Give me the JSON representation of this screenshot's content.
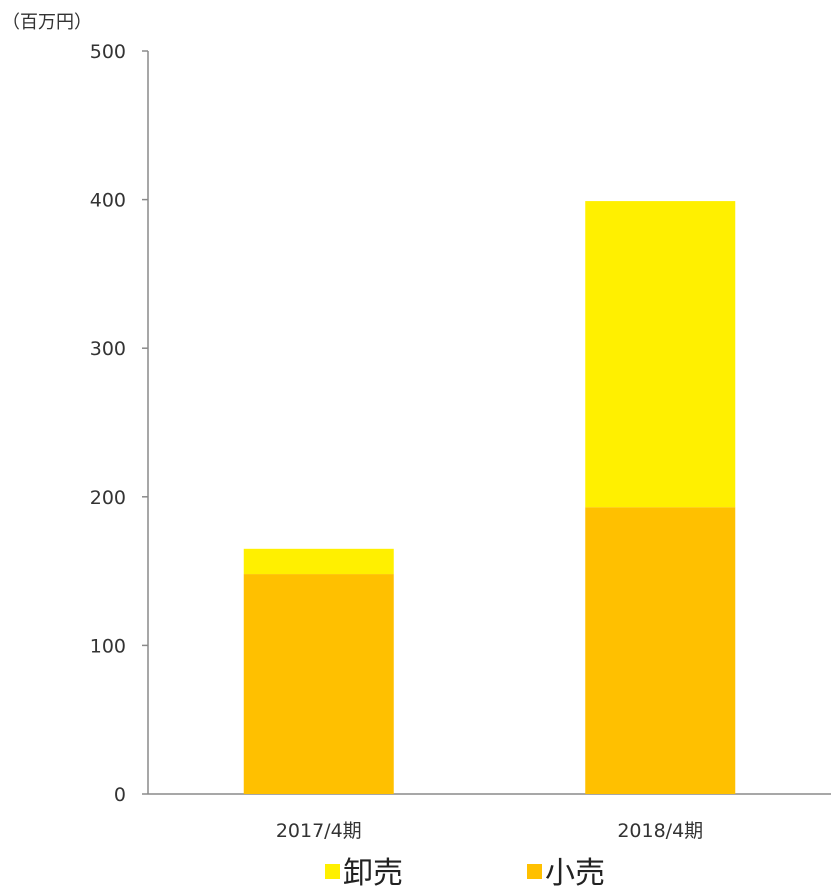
{
  "chart_data": {
    "type": "bar",
    "stacked": true,
    "unit_label": "（百万円）",
    "categories": [
      "2017/4期",
      "2018/4期"
    ],
    "series": [
      {
        "name": "小売",
        "values": [
          148,
          193
        ],
        "color": "#FFC000"
      },
      {
        "name": "卸売",
        "values": [
          17,
          206
        ],
        "color": "#FFF000"
      }
    ],
    "ylim": [
      0,
      500
    ],
    "yticks": [
      0,
      100,
      200,
      300,
      400,
      500
    ],
    "grid": false,
    "legend_position": "bottom",
    "legend_order": [
      "卸売",
      "小売"
    ]
  }
}
